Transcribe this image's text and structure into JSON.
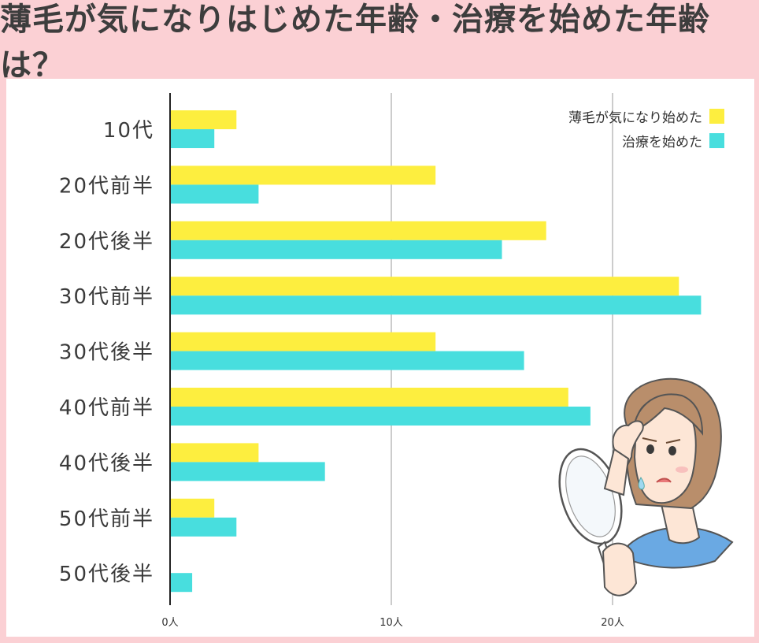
{
  "title": "薄毛が気になりはじめた年齢・治療を始めた年齢は？",
  "chart_data": {
    "type": "bar",
    "orientation": "horizontal",
    "title": "薄毛が気になりはじめた年齢・治療を始めた年齢は？",
    "categories": [
      "10代",
      "20代前半",
      "20代後半",
      "30代前半",
      "30代後半",
      "40代前半",
      "40代後半",
      "50代前半",
      "50代後半"
    ],
    "series": [
      {
        "name": "薄毛が気になり始めた",
        "color": "#fdee3f",
        "values": [
          3,
          12,
          17,
          23,
          12,
          18,
          4,
          2,
          0
        ]
      },
      {
        "name": "治療を始めた",
        "color": "#48dede",
        "values": [
          2,
          4,
          15,
          24,
          16,
          19,
          7,
          3,
          1
        ]
      }
    ],
    "xlim": [
      0,
      26
    ],
    "ticks": [
      {
        "value": 0,
        "label": "0人"
      },
      {
        "value": 10,
        "label": "10人"
      },
      {
        "value": 20,
        "label": "20人"
      }
    ],
    "grid": true,
    "legend": "top-right"
  }
}
